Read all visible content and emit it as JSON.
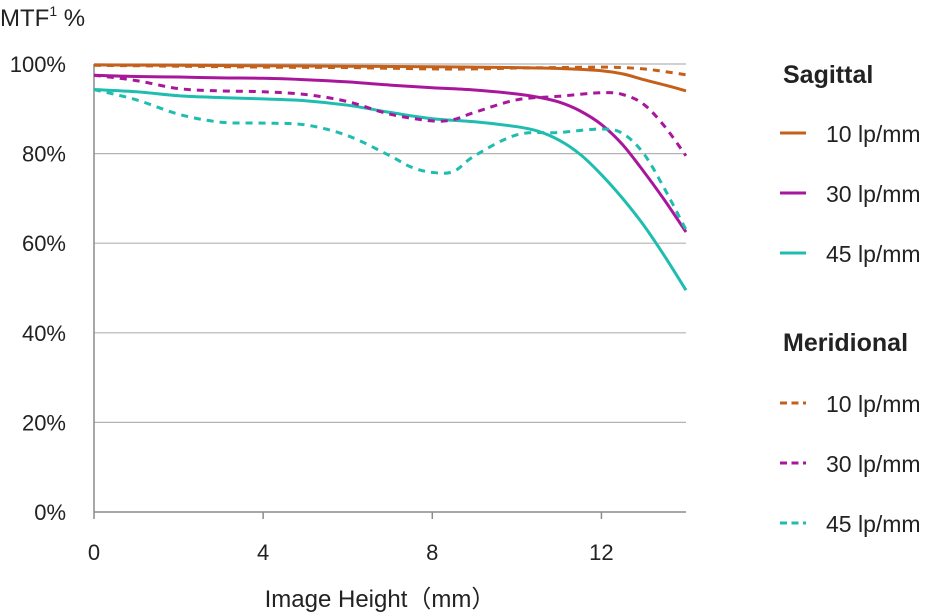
{
  "chart_data": {
    "type": "line",
    "ylabel_prefix": "MTF",
    "ylabel_superscript": "1",
    "ylabel_suffix": " %",
    "xlabel": "Image Height（mm）",
    "xlim": [
      0,
      14
    ],
    "ylim": [
      0,
      100
    ],
    "x_ticks": [
      0,
      4,
      8,
      12
    ],
    "x_tick_labels": [
      "0",
      "4",
      "8",
      "12"
    ],
    "y_ticks": [
      0,
      20,
      40,
      60,
      80,
      100
    ],
    "y_tick_labels": [
      "0%",
      "20%",
      "40%",
      "60%",
      "80%",
      "100%"
    ],
    "grid": "horizontal",
    "legend_position": "right",
    "groups": [
      {
        "title": "Sagittal",
        "series_indices": [
          0,
          1,
          2
        ]
      },
      {
        "title": "Meridional",
        "series_indices": [
          3,
          4,
          5
        ]
      }
    ],
    "series": [
      {
        "name": "10 lp/mm",
        "group": "Sagittal",
        "color": "#c5601a",
        "dashed": false,
        "x": [
          0,
          2,
          4,
          6,
          8,
          10,
          11,
          12,
          12.5,
          13,
          13.5,
          14
        ],
        "y": [
          99.8,
          99.7,
          99.6,
          99.5,
          99.4,
          99.2,
          99.0,
          98.5,
          97.8,
          96.5,
          95.3,
          94.0
        ]
      },
      {
        "name": "30 lp/mm",
        "group": "Sagittal",
        "color": "#a8179b",
        "dashed": false,
        "x": [
          0,
          1,
          2,
          3,
          4,
          5,
          6,
          7,
          8,
          9,
          10,
          10.5,
          11,
          11.5,
          12,
          12.5,
          13,
          13.5,
          14
        ],
        "y": [
          97.5,
          97.2,
          97.1,
          96.9,
          96.8,
          96.5,
          96.0,
          95.3,
          94.7,
          94.2,
          93.3,
          92.6,
          91.5,
          89.5,
          86.5,
          82.0,
          76.0,
          69.5,
          62.5
        ]
      },
      {
        "name": "45 lp/mm",
        "group": "Sagittal",
        "color": "#1fbdb0",
        "dashed": false,
        "x": [
          0,
          1,
          2,
          3,
          4,
          5,
          6,
          7,
          8,
          9,
          10,
          10.5,
          11,
          11.5,
          12,
          12.5,
          13,
          13.5,
          14
        ],
        "y": [
          94.3,
          93.8,
          92.9,
          92.5,
          92.2,
          91.8,
          90.8,
          89.2,
          87.8,
          87.1,
          86.0,
          85.0,
          83.0,
          79.8,
          75.3,
          70.0,
          64.0,
          57.0,
          49.5
        ]
      },
      {
        "name": "10 lp/mm",
        "group": "Meridional",
        "color": "#c5601a",
        "dashed": true,
        "x": [
          0,
          2,
          4,
          6,
          8,
          9,
          10,
          11,
          12,
          12.5,
          13,
          13.5,
          14
        ],
        "y": [
          99.7,
          99.5,
          99.3,
          99.2,
          98.9,
          98.9,
          99.1,
          99.2,
          99.3,
          99.2,
          98.9,
          98.3,
          97.6
        ]
      },
      {
        "name": "30 lp/mm",
        "group": "Meridional",
        "color": "#a8179b",
        "dashed": true,
        "x": [
          0,
          1,
          2,
          3,
          4,
          5,
          6,
          7,
          8,
          8.5,
          9,
          10,
          11,
          12,
          12.5,
          13,
          13.5,
          14
        ],
        "y": [
          97.5,
          96.3,
          94.5,
          94.0,
          93.8,
          93.2,
          91.6,
          88.8,
          87.3,
          87.6,
          89.2,
          92.0,
          92.8,
          93.6,
          93.2,
          91.0,
          86.0,
          79.5
        ]
      },
      {
        "name": "45 lp/mm",
        "group": "Meridional",
        "color": "#1fbdb0",
        "dashed": true,
        "x": [
          0,
          1,
          2,
          3,
          4,
          5,
          6,
          7,
          7.5,
          8,
          8.5,
          9,
          10,
          11,
          12,
          12.5,
          13,
          13.5,
          14
        ],
        "y": [
          94.3,
          92.0,
          88.8,
          87.0,
          86.8,
          86.4,
          84.0,
          79.5,
          77.0,
          75.8,
          76.0,
          79.5,
          84.2,
          84.7,
          85.5,
          84.5,
          80.0,
          72.0,
          63.0
        ]
      }
    ]
  }
}
